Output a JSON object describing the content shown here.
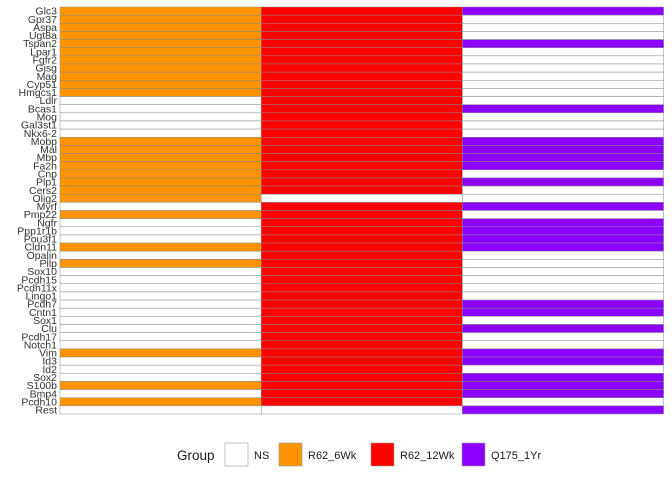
{
  "chart_data": {
    "type": "heatmap",
    "genes": [
      "Glc3",
      "Gpr37",
      "Aspa",
      "Ugt8a",
      "Tspan2",
      "Lpar1",
      "Fgfr2",
      "Gjsg",
      "Mag",
      "Cyp51",
      "Hmgcs1",
      "Ldlr",
      "Bcas1",
      "Mog",
      "Gal3st1",
      "Nkx6-2",
      "Mobp",
      "Mal",
      "Mbp",
      "Fa2h",
      "Cnp",
      "Plp1",
      "Cers2",
      "Olig2",
      "Myrf",
      "Pmp22",
      "Ngfr",
      "Ppp1r1b",
      "Pou3f1",
      "Cldn11",
      "Opalin",
      "Pllp",
      "Sox10",
      "Pcdh15",
      "Pcdh11x",
      "Lingo1",
      "Pcdh7",
      "Cntn1",
      "Sox1",
      "Clu",
      "Pcdh17",
      "Notch1",
      "Vim",
      "Id3",
      "Id2",
      "Sox2",
      "S100b",
      "Bmp4",
      "Pcdh10",
      "Rest"
    ],
    "columns": [
      "R62_6Wk",
      "R62_12Wk",
      "Q175_1Yr"
    ],
    "values": [
      [
        "R62_6Wk",
        "R62_12Wk",
        "Q175_1Yr"
      ],
      [
        "R62_6Wk",
        "R62_12Wk",
        "NS"
      ],
      [
        "R62_6Wk",
        "R62_12Wk",
        "NS"
      ],
      [
        "R62_6Wk",
        "R62_12Wk",
        "NS"
      ],
      [
        "R62_6Wk",
        "R62_12Wk",
        "Q175_1Yr"
      ],
      [
        "R62_6Wk",
        "R62_12Wk",
        "NS"
      ],
      [
        "R62_6Wk",
        "R62_12Wk",
        "NS"
      ],
      [
        "R62_6Wk",
        "R62_12Wk",
        "NS"
      ],
      [
        "R62_6Wk",
        "R62_12Wk",
        "NS"
      ],
      [
        "R62_6Wk",
        "R62_12Wk",
        "NS"
      ],
      [
        "R62_6Wk",
        "R62_12Wk",
        "NS"
      ],
      [
        "NS",
        "R62_12Wk",
        "NS"
      ],
      [
        "NS",
        "R62_12Wk",
        "Q175_1Yr"
      ],
      [
        "NS",
        "R62_12Wk",
        "NS"
      ],
      [
        "NS",
        "R62_12Wk",
        "NS"
      ],
      [
        "NS",
        "R62_12Wk",
        "NS"
      ],
      [
        "R62_6Wk",
        "R62_12Wk",
        "Q175_1Yr"
      ],
      [
        "R62_6Wk",
        "R62_12Wk",
        "Q175_1Yr"
      ],
      [
        "R62_6Wk",
        "R62_12Wk",
        "Q175_1Yr"
      ],
      [
        "R62_6Wk",
        "R62_12Wk",
        "Q175_1Yr"
      ],
      [
        "R62_6Wk",
        "R62_12Wk",
        "NS"
      ],
      [
        "R62_6Wk",
        "R62_12Wk",
        "Q175_1Yr"
      ],
      [
        "R62_6Wk",
        "R62_12Wk",
        "NS"
      ],
      [
        "R62_6Wk",
        "NS",
        "NS"
      ],
      [
        "NS",
        "R62_12Wk",
        "Q175_1Yr"
      ],
      [
        "R62_6Wk",
        "R62_12Wk",
        "NS"
      ],
      [
        "NS",
        "R62_12Wk",
        "Q175_1Yr"
      ],
      [
        "NS",
        "R62_12Wk",
        "Q175_1Yr"
      ],
      [
        "NS",
        "R62_12Wk",
        "Q175_1Yr"
      ],
      [
        "R62_6Wk",
        "R62_12Wk",
        "Q175_1Yr"
      ],
      [
        "NS",
        "R62_12Wk",
        "NS"
      ],
      [
        "R62_6Wk",
        "R62_12Wk",
        "NS"
      ],
      [
        "NS",
        "R62_12Wk",
        "NS"
      ],
      [
        "NS",
        "R62_12Wk",
        "NS"
      ],
      [
        "NS",
        "R62_12Wk",
        "NS"
      ],
      [
        "NS",
        "R62_12Wk",
        "NS"
      ],
      [
        "NS",
        "R62_12Wk",
        "Q175_1Yr"
      ],
      [
        "NS",
        "R62_12Wk",
        "Q175_1Yr"
      ],
      [
        "NS",
        "R62_12Wk",
        "NS"
      ],
      [
        "NS",
        "R62_12Wk",
        "Q175_1Yr"
      ],
      [
        "NS",
        "R62_12Wk",
        "NS"
      ],
      [
        "NS",
        "R62_12Wk",
        "NS"
      ],
      [
        "R62_6Wk",
        "R62_12Wk",
        "Q175_1Yr"
      ],
      [
        "NS",
        "R62_12Wk",
        "Q175_1Yr"
      ],
      [
        "NS",
        "R62_12Wk",
        "NS"
      ],
      [
        "NS",
        "R62_12Wk",
        "Q175_1Yr"
      ],
      [
        "R62_6Wk",
        "R62_12Wk",
        "Q175_1Yr"
      ],
      [
        "NS",
        "R62_12Wk",
        "Q175_1Yr"
      ],
      [
        "R62_6Wk",
        "R62_12Wk",
        "NS"
      ],
      [
        "NS",
        "NS",
        "Q175_1Yr"
      ]
    ],
    "legend": {
      "title": "Group",
      "position": "bottom",
      "entries": [
        {
          "label": "NS",
          "color": "#ffffff"
        },
        {
          "label": "R62_6Wk",
          "color": "#ff9400"
        },
        {
          "label": "R62_12Wk",
          "color": "#ff0000"
        },
        {
          "label": "Q175_1Yr",
          "color": "#8c00ff"
        }
      ]
    },
    "xlabel": "",
    "ylabel": "",
    "grid": false
  }
}
